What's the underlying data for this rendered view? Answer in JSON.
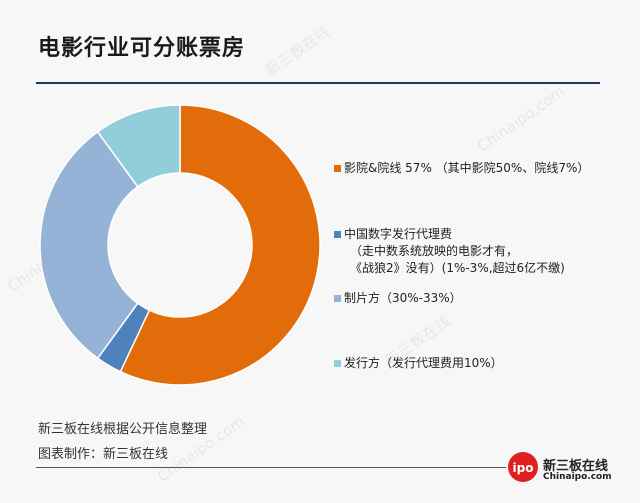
{
  "title": "电影行业可分账票房",
  "source_note": "新三板在线根据公开信息整理",
  "chart_credit": "图表制作：新三板在线",
  "logo": {
    "badge_text": "ipo",
    "name": "新三板在线",
    "site": "Chinaipo.com"
  },
  "colors": {
    "rule": "#1f3a5a",
    "accent": "#e02020"
  },
  "chart_data": {
    "type": "pie",
    "donut": true,
    "slices": [
      {
        "label": "影院&院线 57% （其中影院50%、院线7%）",
        "value": 57,
        "color": "#e36c0a"
      },
      {
        "label": "中国数字发行代理费",
        "note": "（走中数系统放映的电影才有，\n《战狼2》没有）(1%-3%,超过6亿不缴)",
        "value": 3,
        "color": "#4f81bd"
      },
      {
        "label": "制片方（30%-33%）",
        "value": 30,
        "color": "#95b3d7"
      },
      {
        "label": "发行方（发行代理费用10%）",
        "value": 10,
        "color": "#92cddc"
      }
    ],
    "legend_position": "right"
  }
}
